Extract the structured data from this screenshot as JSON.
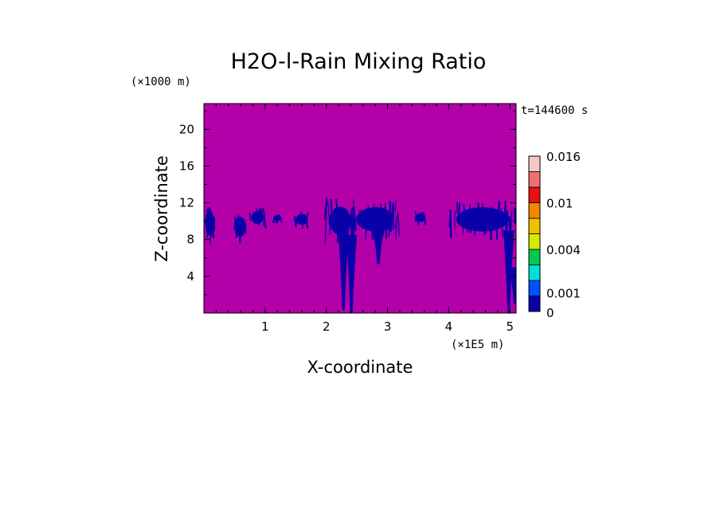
{
  "chart_data": {
    "type": "heatmap",
    "title": "H2O-l-Rain Mixing Ratio",
    "time_label": "t=144600 s",
    "xlabel": "X-coordinate",
    "ylabel": "Z-coordinate",
    "x_scale_label": "(×1E5 m)",
    "y_scale_label": "(×1000 m)",
    "xlim": [
      0,
      5.1
    ],
    "ylim": [
      0,
      22.8
    ],
    "xticks": [
      {
        "value": 1,
        "label": "1"
      },
      {
        "value": 2,
        "label": "2"
      },
      {
        "value": 3,
        "label": "3"
      },
      {
        "value": 4,
        "label": "4"
      },
      {
        "value": 5,
        "label": "5"
      }
    ],
    "yticks": [
      {
        "value": 4,
        "label": "4"
      },
      {
        "value": 8,
        "label": "8"
      },
      {
        "value": 12,
        "label": "12"
      },
      {
        "value": 16,
        "label": "16"
      },
      {
        "value": 20,
        "label": "20"
      }
    ],
    "background_color": "#b400a8",
    "field_color": "#0a00a8",
    "field_regions": [
      {
        "x": [
          0.0,
          0.18
        ],
        "z": [
          7.5,
          12.2
        ]
      },
      {
        "x": [
          0.47,
          0.72
        ],
        "z": [
          7.6,
          11.2
        ]
      },
      {
        "x": [
          0.75,
          1.0
        ],
        "z": [
          9.2,
          11.6
        ]
      },
      {
        "x": [
          1.15,
          1.27
        ],
        "z": [
          9.8,
          10.9
        ]
      },
      {
        "x": [
          1.48,
          1.72
        ],
        "z": [
          9.2,
          11.2
        ]
      },
      {
        "x": [
          2.0,
          2.45
        ],
        "z": [
          7.5,
          12.6
        ]
      },
      {
        "x": [
          2.4,
          3.2
        ],
        "z": [
          8.0,
          12.4
        ]
      },
      {
        "x": [
          3.45,
          3.62
        ],
        "z": [
          9.6,
          11.2
        ]
      },
      {
        "x": [
          4.0,
          5.1
        ],
        "z": [
          8.0,
          12.4
        ]
      }
    ],
    "field_plumes": [
      {
        "x": 2.28,
        "z_bottom": 0.3,
        "z_top": 9.0
      },
      {
        "x": 2.41,
        "z_bottom": 0.0,
        "z_top": 8.5
      },
      {
        "x": 2.85,
        "z_bottom": 5.3,
        "z_top": 9.0
      },
      {
        "x": 4.98,
        "z_bottom": 0.0,
        "z_top": 9.0
      },
      {
        "x": 5.08,
        "z_bottom": 1.0,
        "z_top": 5.0
      }
    ],
    "colorbar": {
      "bins": [
        {
          "lower": 0,
          "upper": 0.001,
          "color": "#0a00a8"
        },
        {
          "lower": 0.001,
          "upper": 0.002,
          "color": "#0050ff"
        },
        {
          "lower": 0.002,
          "upper": 0.003,
          "color": "#00e0d8"
        },
        {
          "lower": 0.003,
          "upper": 0.004,
          "color": "#00c850"
        },
        {
          "lower": 0.004,
          "upper": 0.006,
          "color": "#d8e800"
        },
        {
          "lower": 0.006,
          "upper": 0.008,
          "color": "#f0c000"
        },
        {
          "lower": 0.008,
          "upper": 0.01,
          "color": "#f08800"
        },
        {
          "lower": 0.01,
          "upper": 0.012,
          "color": "#e81010"
        },
        {
          "lower": 0.012,
          "upper": 0.014,
          "color": "#f07070"
        },
        {
          "lower": 0.014,
          "upper": 0.016,
          "color": "#f8c8c8"
        }
      ],
      "labels": [
        {
          "value": 0,
          "label": "0"
        },
        {
          "value": 0.001,
          "label": "0.001"
        },
        {
          "value": 0.004,
          "label": "0.004"
        },
        {
          "value": 0.01,
          "label": "0.01"
        },
        {
          "value": 0.016,
          "label": "0.016"
        }
      ]
    }
  }
}
